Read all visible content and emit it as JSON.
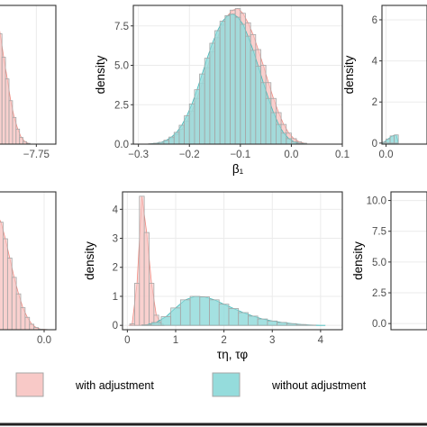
{
  "colors": {
    "with": "#f8c9c7",
    "without": "#95dcdc",
    "with_line": "#f08a80",
    "without_line": "#3fb9b9",
    "outline": "#a6a6a6",
    "grid": "#ebebeb"
  },
  "legend": {
    "items": [
      {
        "label": "with adjustment",
        "color": "#f8c9c7"
      },
      {
        "label": "without adjustment",
        "color": "#95dcdc"
      }
    ]
  },
  "chart_data": [
    {
      "id": "top-left",
      "type": "area",
      "ylabel": "",
      "xlabel": "",
      "xlim": [
        -7.95,
        -7.65
      ],
      "ylim": [
        0,
        8.3
      ],
      "xticks": [
        {
          "v": -7.75,
          "label": "−7.75"
        }
      ],
      "yticks": [],
      "series": [
        {
          "key": "with",
          "bins": {
            "start": -7.98,
            "width": 0.018,
            "heights": [
              8.2,
              7.8,
              6.6,
              5.2,
              3.9,
              2.6,
              1.6,
              0.9,
              0.4,
              0.15,
              0.05
            ]
          }
        }
      ]
    },
    {
      "id": "top-middle",
      "type": "area",
      "ylabel": "density",
      "xlabel": "β₁",
      "xlim": [
        -0.31,
        0.1
      ],
      "ylim": [
        0,
        8.8
      ],
      "xticks": [
        {
          "v": -0.3,
          "label": "−0.3"
        },
        {
          "v": -0.2,
          "label": "−0.2"
        },
        {
          "v": -0.1,
          "label": "−0.1"
        },
        {
          "v": 0.0,
          "label": "0.0"
        },
        {
          "v": 0.1,
          "label": "0.1"
        }
      ],
      "yticks": [
        {
          "v": 0,
          "label": "0.0"
        },
        {
          "v": 2.5,
          "label": "2.5"
        },
        {
          "v": 5,
          "label": "5.0"
        },
        {
          "v": 7.5,
          "label": "7.5"
        }
      ],
      "series": [
        {
          "key": "with",
          "bins": {
            "start": -0.28,
            "width": 0.01,
            "heights": [
              0.02,
              0.05,
              0.1,
              0.2,
              0.35,
              0.6,
              0.95,
              1.45,
              2.1,
              2.9,
              3.85,
              4.85,
              5.85,
              6.75,
              7.55,
              8.15,
              8.5,
              8.6,
              8.3,
              7.7,
              6.95,
              6.0,
              5.0,
              3.9,
              2.9,
              2.0,
              1.25,
              0.7,
              0.35,
              0.15,
              0.06
            ]
          }
        },
        {
          "key": "without",
          "bins": {
            "start": -0.28,
            "width": 0.01,
            "heights": [
              0.02,
              0.06,
              0.12,
              0.25,
              0.45,
              0.75,
              1.2,
              1.8,
              2.55,
              3.45,
              4.45,
              5.45,
              6.4,
              7.2,
              7.8,
              8.15,
              8.25,
              8.05,
              7.6,
              6.85,
              5.95,
              4.95,
              3.9,
              2.9,
              2.0,
              1.25,
              0.7,
              0.35,
              0.15,
              0.06,
              0.02
            ]
          }
        }
      ]
    },
    {
      "id": "top-right",
      "type": "area",
      "ylabel": "density",
      "xlabel": "",
      "xlim": [
        -0.1,
        1.0
      ],
      "ylim": [
        -0.05,
        6.7
      ],
      "xticks": [
        {
          "v": 0,
          "label": "0.0"
        }
      ],
      "yticks": [
        {
          "v": 0,
          "label": "0"
        },
        {
          "v": 2,
          "label": "2"
        },
        {
          "v": 4,
          "label": "4"
        },
        {
          "v": 6,
          "label": "6"
        }
      ],
      "series": [
        {
          "key": "without",
          "bins": {
            "start": -0.1,
            "width": 0.1,
            "heights": [
              0.05,
              0.2,
              0.35,
              0.4
            ]
          }
        }
      ]
    },
    {
      "id": "bottom-left",
      "type": "area",
      "ylabel": "",
      "xlabel": "",
      "xlim": [
        -0.32,
        0.08
      ],
      "ylim": [
        0,
        5.0
      ],
      "xticks": [
        {
          "v": 0.0,
          "label": "0.0"
        }
      ],
      "yticks": [],
      "series": [
        {
          "key": "with",
          "bins": {
            "start": -0.34,
            "width": 0.03,
            "heights": [
              4.2,
              3.9,
              3.3,
              2.6,
              1.9,
              1.3,
              0.8,
              0.45,
              0.2,
              0.08,
              0.02,
              0.01
            ]
          }
        }
      ]
    },
    {
      "id": "bottom-middle",
      "type": "area",
      "ylabel": "density",
      "xlabel": "τη, τφ",
      "xlim": [
        -0.1,
        4.45
      ],
      "ylim": [
        -0.15,
        4.6
      ],
      "xticks": [
        {
          "v": 0,
          "label": "0"
        },
        {
          "v": 1,
          "label": "1"
        },
        {
          "v": 2,
          "label": "2"
        },
        {
          "v": 3,
          "label": "3"
        },
        {
          "v": 4,
          "label": "4"
        }
      ],
      "yticks": [
        {
          "v": 0,
          "label": "0"
        },
        {
          "v": 1,
          "label": "1"
        },
        {
          "v": 2,
          "label": "2"
        },
        {
          "v": 3,
          "label": "3"
        },
        {
          "v": 4,
          "label": "4"
        }
      ],
      "series": [
        {
          "key": "with",
          "bins": {
            "start": 0.05,
            "width": 0.1,
            "heights": [
              0.05,
              1.45,
              4.45,
              3.2,
              1.45,
              0.35,
              0.05
            ]
          }
        },
        {
          "key": "without",
          "bins": {
            "start": 0.3,
            "width": 0.2,
            "heights": [
              0.02,
              0.1,
              0.3,
              0.6,
              0.88,
              1.0,
              0.98,
              0.88,
              0.73,
              0.58,
              0.44,
              0.32,
              0.22,
              0.15,
              0.1,
              0.06,
              0.03,
              0.01,
              0.0
            ]
          }
        }
      ]
    },
    {
      "id": "bottom-right",
      "type": "area",
      "ylabel": "density",
      "xlabel": "",
      "xlim": [
        0,
        1
      ],
      "ylim": [
        -0.5,
        10.7
      ],
      "xticks": [],
      "yticks": [
        {
          "v": 0,
          "label": "0.0"
        },
        {
          "v": 2.5,
          "label": "2.5"
        },
        {
          "v": 5,
          "label": "5.0"
        },
        {
          "v": 7.5,
          "label": "7.5"
        },
        {
          "v": 10,
          "label": "10.0"
        }
      ],
      "series": []
    }
  ]
}
